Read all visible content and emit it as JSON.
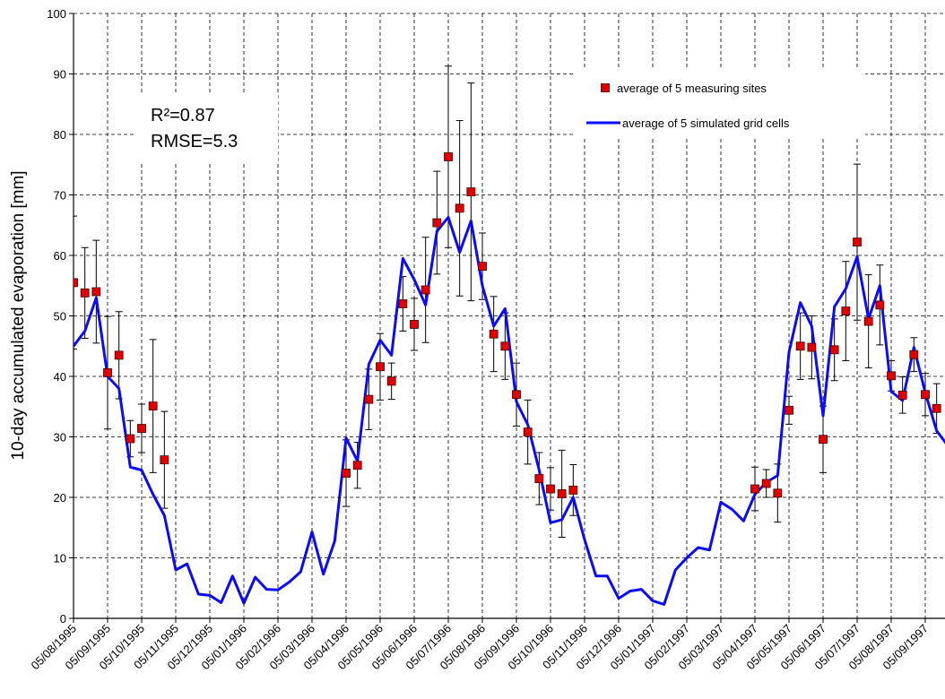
{
  "chart_data": {
    "type": "line",
    "ylabel": "10-day accumulated evaporation [mm]",
    "annotations": [
      "R²=0.87",
      "RMSE=5.3"
    ],
    "legend": "upper right",
    "grid": true,
    "ylim": [
      0,
      100
    ],
    "yticks": [
      0,
      10,
      20,
      30,
      40,
      50,
      60,
      70,
      80,
      90,
      100
    ],
    "categories": [
      "05/08/1995",
      null,
      null,
      "05/09/1995",
      null,
      null,
      "05/10/1995",
      null,
      null,
      "05/11/1995",
      null,
      null,
      "05/12/1995",
      null,
      null,
      "05/01/1996",
      null,
      null,
      "05/02/1996",
      null,
      null,
      "05/03/1996",
      null,
      null,
      "05/04/1996",
      null,
      null,
      "05/05/1996",
      null,
      null,
      "05/06/1996",
      null,
      null,
      "05/07/1996",
      null,
      null,
      "05/08/1996",
      null,
      null,
      "05/09/1996",
      null,
      null,
      "05/10/1996",
      null,
      null,
      "05/11/1996",
      null,
      null,
      "05/12/1996",
      null,
      null,
      "05/01/1997",
      null,
      null,
      "05/02/1997",
      null,
      null,
      "05/03/1997",
      null,
      null,
      "05/04/1997",
      null,
      null,
      "05/05/1997",
      null,
      null,
      "05/06/1997",
      null,
      null,
      "05/07/1997",
      null,
      null,
      "05/08/1997",
      null,
      null,
      "05/09/1997",
      null,
      null
    ],
    "series": [
      {
        "name": "average of 5 measuring sites",
        "type": "scatter",
        "color": "#e00000",
        "values": [
          55.5,
          53.8,
          54,
          40.6,
          43.5,
          29.7,
          31.4,
          35.1,
          26.2,
          null,
          null,
          null,
          null,
          null,
          null,
          null,
          null,
          null,
          null,
          null,
          null,
          null,
          null,
          null,
          24,
          25.3,
          36.2,
          41.6,
          39.2,
          52,
          48.6,
          54.3,
          65.4,
          76.3,
          67.8,
          70.5,
          58.2,
          47,
          45,
          37,
          30.8,
          23.1,
          21.4,
          20.6,
          21.2,
          null,
          null,
          null,
          null,
          null,
          null,
          null,
          null,
          null,
          null,
          null,
          null,
          null,
          null,
          null,
          21.4,
          22.3,
          20.7,
          34.4,
          45,
          44.8,
          29.6,
          44.4,
          50.8,
          62.2,
          49.1,
          51.8,
          40.1,
          36.9,
          43.6,
          37,
          34.7,
          null
        ],
        "errors": [
          11,
          7.5,
          8.5,
          9.3,
          7.2,
          3,
          4,
          11,
          8,
          null,
          null,
          null,
          null,
          null,
          null,
          null,
          null,
          null,
          null,
          null,
          null,
          null,
          null,
          null,
          5.5,
          3.8,
          5,
          5.5,
          3,
          4.5,
          4.3,
          8.7,
          8.5,
          15,
          14.5,
          18,
          5.5,
          6.2,
          5.5,
          5.2,
          5.3,
          4.3,
          3.5,
          7.2,
          4.2,
          null,
          null,
          null,
          null,
          null,
          null,
          null,
          null,
          null,
          null,
          null,
          null,
          null,
          null,
          null,
          3.6,
          2.3,
          4.8,
          2.3,
          5.5,
          5.2,
          5.5,
          5.1,
          8.2,
          12.9,
          7.7,
          6.6,
          2.5,
          3,
          2.8,
          3.5,
          4.1,
          null
        ]
      },
      {
        "name": "average of 5 simulated grid cells",
        "type": "line",
        "color": "#0a0aff",
        "values": [
          45,
          47.5,
          53,
          40,
          38,
          25,
          24.5,
          20.5,
          17,
          8,
          9,
          4,
          3.8,
          2.6,
          7,
          2.5,
          6.8,
          4.8,
          4.7,
          6,
          7.7,
          14.3,
          7.3,
          12.8,
          29.8,
          26,
          42,
          46,
          43.5,
          59.5,
          56,
          51.8,
          64,
          66.3,
          60.5,
          65.7,
          55,
          48.3,
          51.2,
          35.8,
          32,
          24.5,
          15.8,
          16.3,
          20,
          13,
          7,
          7,
          3.3,
          4.5,
          4.8,
          2.9,
          2.3,
          8,
          10,
          11.7,
          11.3,
          19.2,
          18,
          16.1,
          20.5,
          22.5,
          23.6,
          44,
          52.2,
          48.3,
          33.5,
          51.5,
          54.5,
          59.8,
          49.5,
          55,
          37.5,
          36,
          44.8,
          37.3,
          31,
          28.5
        ]
      }
    ]
  }
}
